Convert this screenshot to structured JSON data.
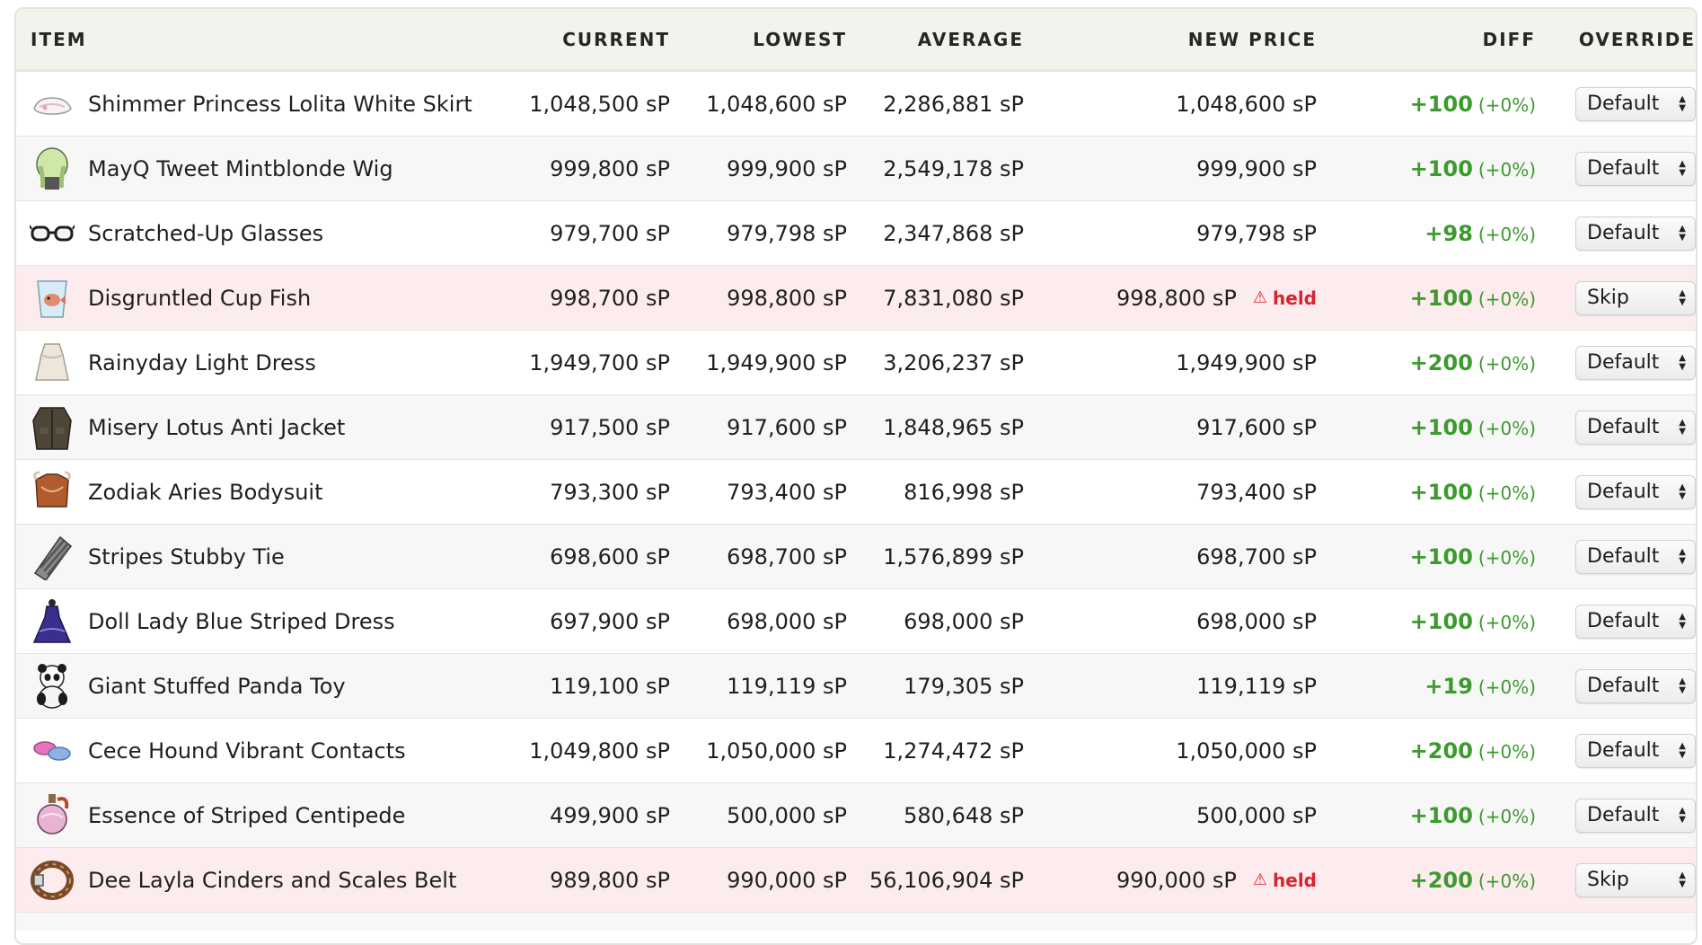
{
  "table": {
    "headers": {
      "item": "ITEM",
      "current": "CURRENT",
      "lowest": "LOWEST",
      "average": "AVERAGE",
      "new_price": "NEW PRICE",
      "diff": "DIFF",
      "override": "OVERRIDE"
    },
    "rows": [
      {
        "icon": "white-skirt-icon",
        "name": "Shimmer Princess Lolita White Skirt",
        "current": "1,048,500 sP",
        "lowest": "1,048,600 sP",
        "average": "2,286,881 sP",
        "new_price": "1,048,600 sP",
        "held": "",
        "diff": "+100",
        "diff_pct": "(+0%)",
        "override": "Default"
      },
      {
        "icon": "mint-wig-icon",
        "name": "MayQ Tweet Mintblonde Wig",
        "current": "999,800 sP",
        "lowest": "999,900 sP",
        "average": "2,549,178 sP",
        "new_price": "999,900 sP",
        "held": "",
        "diff": "+100",
        "diff_pct": "(+0%)",
        "override": "Default"
      },
      {
        "icon": "glasses-icon",
        "name": "Scratched-Up Glasses",
        "current": "979,700 sP",
        "lowest": "979,798 sP",
        "average": "2,347,868 sP",
        "new_price": "979,798 sP",
        "held": "",
        "diff": "+98",
        "diff_pct": "(+0%)",
        "override": "Default"
      },
      {
        "icon": "cup-fish-icon",
        "name": "Disgruntled Cup Fish",
        "current": "998,700 sP",
        "lowest": "998,800 sP",
        "average": "7,831,080 sP",
        "new_price": "998,800 sP",
        "held": "held",
        "diff": "+100",
        "diff_pct": "(+0%)",
        "override": "Skip"
      },
      {
        "icon": "light-dress-icon",
        "name": "Rainyday Light Dress",
        "current": "1,949,700 sP",
        "lowest": "1,949,900 sP",
        "average": "3,206,237 sP",
        "new_price": "1,949,900 sP",
        "held": "",
        "diff": "+200",
        "diff_pct": "(+0%)",
        "override": "Default"
      },
      {
        "icon": "jacket-icon",
        "name": "Misery Lotus Anti Jacket",
        "current": "917,500 sP",
        "lowest": "917,600 sP",
        "average": "1,848,965 sP",
        "new_price": "917,600 sP",
        "held": "",
        "diff": "+100",
        "diff_pct": "(+0%)",
        "override": "Default"
      },
      {
        "icon": "bodysuit-icon",
        "name": "Zodiak Aries Bodysuit",
        "current": "793,300 sP",
        "lowest": "793,400 sP",
        "average": "816,998 sP",
        "new_price": "793,400 sP",
        "held": "",
        "diff": "+100",
        "diff_pct": "(+0%)",
        "override": "Default"
      },
      {
        "icon": "striped-tie-icon",
        "name": "Stripes Stubby Tie",
        "current": "698,600 sP",
        "lowest": "698,700 sP",
        "average": "1,576,899 sP",
        "new_price": "698,700 sP",
        "held": "",
        "diff": "+100",
        "diff_pct": "(+0%)",
        "override": "Default"
      },
      {
        "icon": "blue-dress-icon",
        "name": "Doll Lady Blue Striped Dress",
        "current": "697,900 sP",
        "lowest": "698,000 sP",
        "average": "698,000 sP",
        "new_price": "698,000 sP",
        "held": "",
        "diff": "+100",
        "diff_pct": "(+0%)",
        "override": "Default"
      },
      {
        "icon": "panda-toy-icon",
        "name": "Giant Stuffed Panda Toy",
        "current": "119,100 sP",
        "lowest": "119,119 sP",
        "average": "179,305 sP",
        "new_price": "119,119 sP",
        "held": "",
        "diff": "+19",
        "diff_pct": "(+0%)",
        "override": "Default"
      },
      {
        "icon": "contacts-icon",
        "name": "Cece Hound Vibrant Contacts",
        "current": "1,049,800 sP",
        "lowest": "1,050,000 sP",
        "average": "1,274,472 sP",
        "new_price": "1,050,000 sP",
        "held": "",
        "diff": "+200",
        "diff_pct": "(+0%)",
        "override": "Default"
      },
      {
        "icon": "potion-icon",
        "name": "Essence of Striped Centipede",
        "current": "499,900 sP",
        "lowest": "500,000 sP",
        "average": "580,648 sP",
        "new_price": "500,000 sP",
        "held": "",
        "diff": "+100",
        "diff_pct": "(+0%)",
        "override": "Default"
      },
      {
        "icon": "belt-icon",
        "name": "Dee Layla Cinders and Scales Belt",
        "current": "989,800 sP",
        "lowest": "990,000 sP",
        "average": "56,106,904 sP",
        "new_price": "990,000 sP",
        "held": "held",
        "diff": "+200",
        "diff_pct": "(+0%)",
        "override": "Skip"
      }
    ]
  },
  "colors": {
    "header_bg": "#f3f2ec",
    "held_row_bg": "#fdecee",
    "alt_row_bg": "#f7f7f7",
    "positive_diff": "#3c9a2e",
    "held_text": "#d8242f"
  }
}
